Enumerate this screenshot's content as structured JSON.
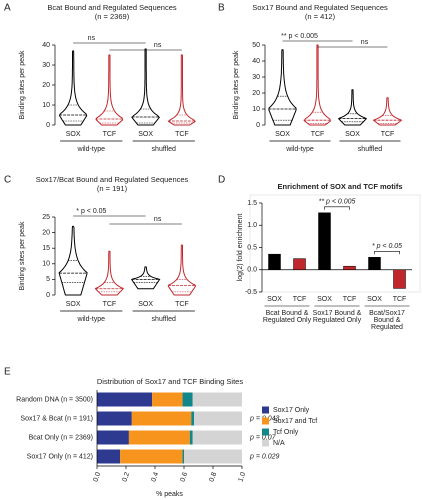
{
  "chart_data": [
    {
      "type": "violin",
      "panel_label": "A",
      "title": "Bcat Bound and Regulated Sequences",
      "subtitle": "(n = 2369)",
      "ylabel": "Binding sites per peak",
      "ylim": [
        0,
        40
      ],
      "yticks": [
        0,
        10,
        20,
        30,
        40
      ],
      "categories": [
        "SOX",
        "TCF",
        "SOX",
        "TCF"
      ],
      "colors": [
        "#000000",
        "#c0272d",
        "#000000",
        "#c0272d"
      ],
      "groups": [
        "wild-type",
        "shuffled"
      ],
      "min": [
        0,
        0,
        0,
        0
      ],
      "q1": [
        2,
        1,
        1,
        1
      ],
      "median": [
        5,
        3,
        4,
        2
      ],
      "q3": [
        10,
        7,
        8,
        5
      ],
      "max": [
        37,
        35,
        38,
        35
      ],
      "annotations": [
        "ns",
        "ns"
      ]
    },
    {
      "type": "violin",
      "panel_label": "B",
      "title": "Sox17 Bound and Regulated Sequences",
      "subtitle": "(n = 412)",
      "ylabel": "Binding sites per peak",
      "ylim": [
        0,
        50
      ],
      "yticks": [
        0,
        10,
        20,
        30,
        40,
        50
      ],
      "categories": [
        "SOX",
        "TCF",
        "SOX",
        "TCF"
      ],
      "colors": [
        "#000000",
        "#c0272d",
        "#000000",
        "#c0272d"
      ],
      "groups": [
        "wild-type",
        "shuffled"
      ],
      "min": [
        0,
        0,
        0,
        0
      ],
      "q1": [
        3,
        1,
        2,
        1
      ],
      "median": [
        10,
        3,
        4,
        3
      ],
      "q3": [
        18,
        8,
        7,
        6
      ],
      "max": [
        47,
        50,
        22,
        17
      ],
      "annotations": [
        "** p < 0.005",
        "ns"
      ]
    },
    {
      "type": "violin",
      "panel_label": "C",
      "title": "Sox17/Bcat Bound and Regulated Sequences",
      "subtitle": "(n = 191)",
      "ylabel": "Binding sites per peak",
      "ylim": [
        0,
        25
      ],
      "yticks": [
        0,
        5,
        10,
        15,
        20,
        25
      ],
      "categories": [
        "SOX",
        "TCF",
        "SOX",
        "TCF"
      ],
      "colors": [
        "#000000",
        "#c0272d",
        "#000000",
        "#c0272d"
      ],
      "groups": [
        "wild-type",
        "shuffled"
      ],
      "min": [
        0,
        0,
        2,
        0
      ],
      "q1": [
        4,
        1,
        4,
        1
      ],
      "median": [
        7,
        2,
        5,
        3
      ],
      "q3": [
        11,
        4,
        6,
        5
      ],
      "max": [
        22,
        14,
        9,
        16
      ],
      "annotations": [
        "* p < 0.05",
        "ns"
      ]
    },
    {
      "type": "bar",
      "panel_label": "D",
      "title": "Enrichment of SOX and TCF motifs",
      "ylabel": "log(2) fold enrichment",
      "ylim": [
        -0.5,
        1.5
      ],
      "yticks": [
        -0.5,
        {
          "value": 0,
          "label": "0.0"
        },
        0.5,
        {
          "value": 1,
          "label": "1.0"
        },
        1.5
      ],
      "categories": [
        "SOX",
        "TCF",
        "SOX",
        "TCF",
        "SOX",
        "TCF"
      ],
      "values": [
        0.35,
        0.25,
        1.28,
        0.08,
        0.28,
        -0.42
      ],
      "colors": [
        "#000000",
        "#c0272d",
        "#000000",
        "#c0272d",
        "#000000",
        "#c0272d"
      ],
      "groups": [
        [
          "Bcat Bound &",
          "Regulated Only"
        ],
        [
          "Sox17 Bound &",
          "Regulated Only"
        ],
        [
          "Bcat/Sox17",
          "Bound &",
          "Regulated"
        ]
      ],
      "annotations": [
        "** p < 0.005",
        "* p < 0.05"
      ]
    },
    {
      "type": "stacked_barh",
      "panel_label": "E",
      "title": "Distribution of Sox17 and TCF Binding Sites",
      "xlabel": "% peaks",
      "xlim": [
        0,
        1
      ],
      "xticks": [
        {
          "value": 0,
          "label": "0.0"
        },
        0.2,
        0.4,
        0.6,
        0.8,
        {
          "value": 1,
          "label": "1.0"
        }
      ],
      "categories": [
        "Random DNA (n = 3500)",
        "Sox17 & Bcat (n = 191)",
        "Bcat Only (n = 2369)",
        "Sox17 Only (n = 412)"
      ],
      "series": [
        {
          "name": "Sox17 Only",
          "color": "#2e3a8f",
          "values": [
            0.38,
            0.24,
            0.22,
            0.16
          ]
        },
        {
          "name": "Sox17 and Tcf",
          "color": "#f7941d",
          "values": [
            0.21,
            0.41,
            0.42,
            0.43
          ]
        },
        {
          "name": "Tcf Only",
          "color": "#12878a",
          "values": [
            0.07,
            0.02,
            0.02,
            0.01
          ]
        },
        {
          "name": "N/A",
          "color": "#d4d4d4",
          "values": [
            0.34,
            0.33,
            0.34,
            0.4
          ]
        }
      ],
      "p_values": [
        null,
        "p = 0.043",
        "p = 0.07",
        "p = 0.029"
      ]
    }
  ]
}
